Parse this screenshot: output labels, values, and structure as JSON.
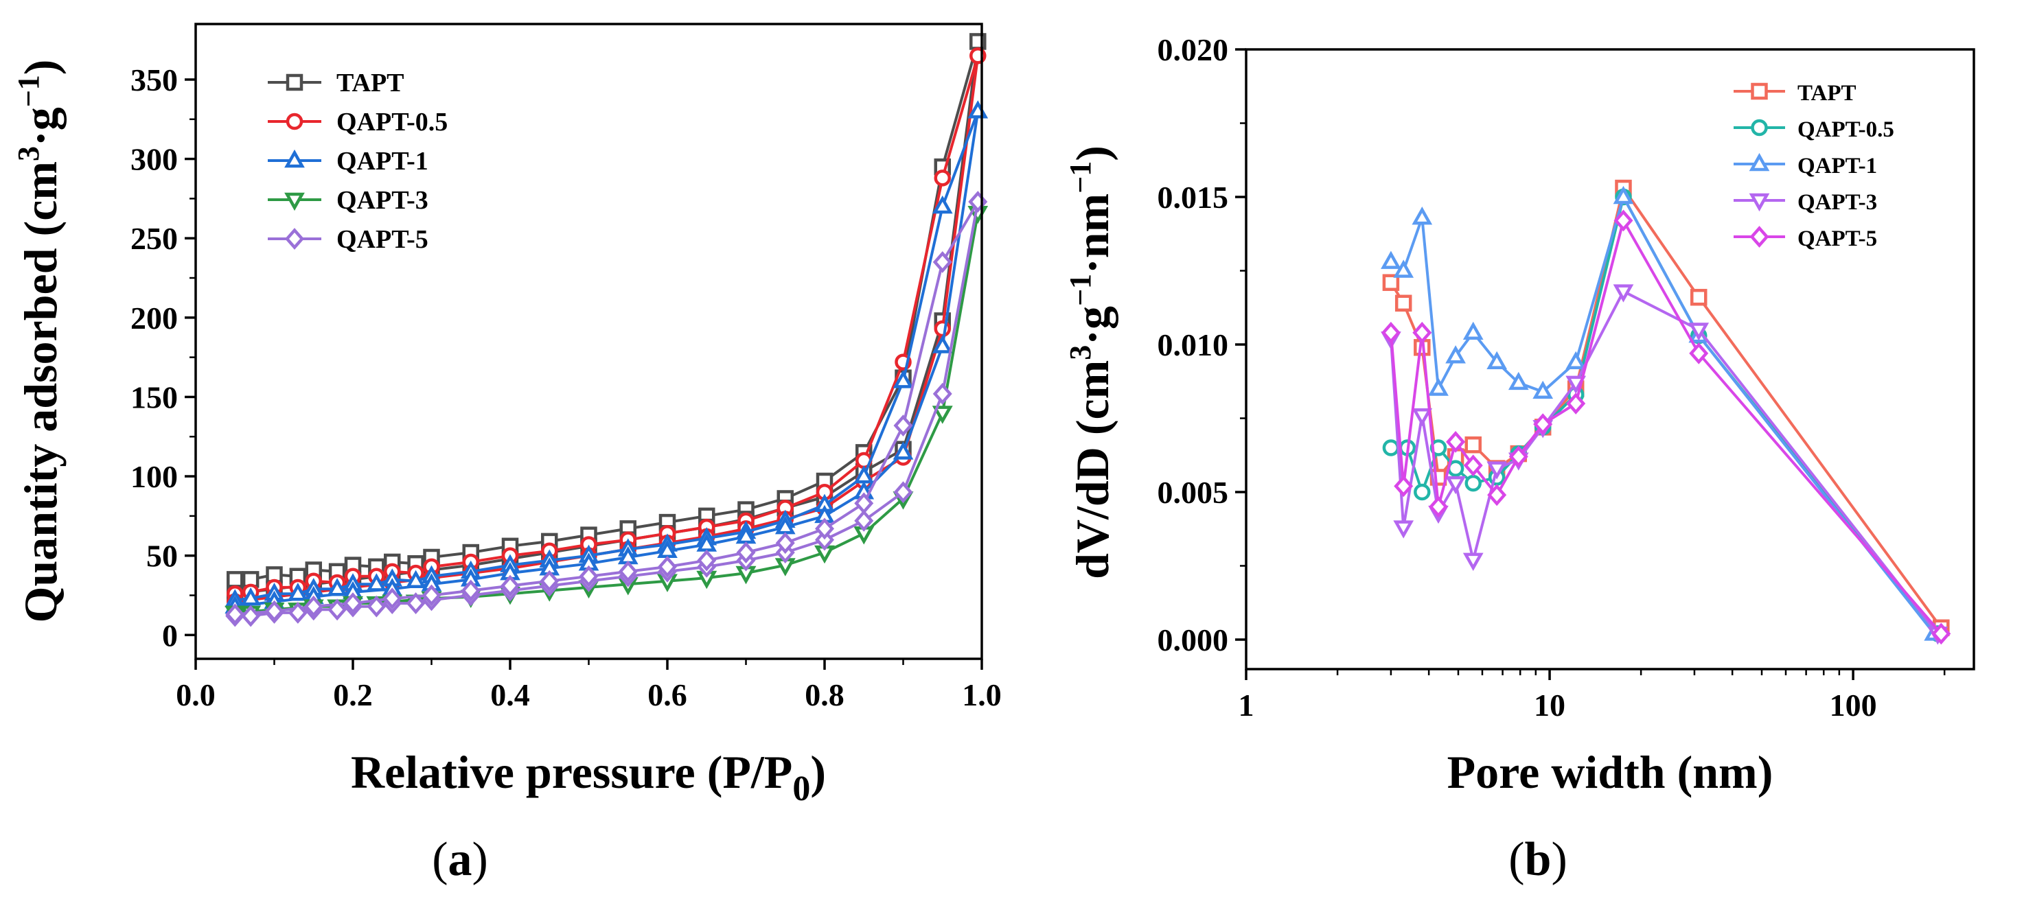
{
  "chart_data": [
    {
      "id": "a",
      "type": "line",
      "panel_label": "a",
      "title": "",
      "xlabel": "Relative pressure (P/P",
      "xlabel_sub": "0",
      "xlabel_end": ")",
      "ylabel": "Quantity adsorbed (cm",
      "ylabel_sup1": "3",
      "ylabel_mid": "·g",
      "ylabel_sup2": "−1",
      "ylabel_end": ")",
      "xscale": "linear",
      "xlim": [
        0.0,
        1.0
      ],
      "ylim": [
        -15,
        385
      ],
      "xticks": [
        0.0,
        0.2,
        0.4,
        0.6,
        0.8,
        1.0
      ],
      "xtick_labels": [
        "0.0",
        "0.2",
        "0.4",
        "0.6",
        "0.8",
        "1.0"
      ],
      "yticks": [
        0,
        50,
        100,
        150,
        200,
        250,
        300,
        350
      ],
      "ytick_labels": [
        "0",
        "50",
        "100",
        "150",
        "200",
        "250",
        "300",
        "350"
      ],
      "legend_position": "top-left",
      "series": [
        {
          "name": "TAPT",
          "color": "#4d4d4d",
          "marker": "square",
          "x": [
            0.05,
            0.07,
            0.1,
            0.13,
            0.15,
            0.18,
            0.2,
            0.23,
            0.25,
            0.28,
            0.3,
            0.35,
            0.4,
            0.45,
            0.5,
            0.55,
            0.6,
            0.65,
            0.7,
            0.75,
            0.8,
            0.85,
            0.9,
            0.95,
            0.995,
            0.95,
            0.9,
            0.85,
            0.8,
            0.75,
            0.7,
            0.65,
            0.6,
            0.55,
            0.5,
            0.45,
            0.4,
            0.35,
            0.3,
            0.25,
            0.2,
            0.15,
            0.1,
            0.05
          ],
          "y": [
            35,
            35,
            38,
            37,
            41,
            40,
            44,
            43,
            46,
            45,
            49,
            52,
            56,
            59,
            63,
            67,
            71,
            75,
            79,
            86,
            97,
            115,
            162,
            295,
            374,
            198,
            117,
            103,
            87,
            80,
            73,
            68,
            64,
            60,
            56,
            52,
            48,
            44,
            41,
            38,
            35,
            32,
            29,
            26
          ]
        },
        {
          "name": "QAPT-0.5",
          "color": "#e8262d",
          "marker": "circle",
          "x": [
            0.05,
            0.07,
            0.1,
            0.13,
            0.15,
            0.18,
            0.2,
            0.23,
            0.25,
            0.28,
            0.3,
            0.35,
            0.4,
            0.45,
            0.5,
            0.55,
            0.6,
            0.65,
            0.7,
            0.75,
            0.8,
            0.85,
            0.9,
            0.95,
            0.995,
            0.95,
            0.9,
            0.85,
            0.8,
            0.75,
            0.7,
            0.65,
            0.6,
            0.55,
            0.5,
            0.45,
            0.4,
            0.35,
            0.3,
            0.25,
            0.2,
            0.15,
            0.1,
            0.05
          ],
          "y": [
            26,
            27,
            30,
            30,
            34,
            33,
            37,
            37,
            40,
            39,
            43,
            46,
            50,
            53,
            57,
            60,
            64,
            68,
            72,
            80,
            90,
            110,
            172,
            288,
            365,
            193,
            112,
            97,
            80,
            73,
            67,
            62,
            58,
            54,
            50,
            46,
            42,
            39,
            36,
            33,
            30,
            27,
            24,
            21
          ]
        },
        {
          "name": "QAPT-1",
          "color": "#1f6fd6",
          "marker": "triangle-up",
          "x": [
            0.05,
            0.07,
            0.1,
            0.13,
            0.15,
            0.18,
            0.2,
            0.23,
            0.25,
            0.28,
            0.3,
            0.35,
            0.4,
            0.45,
            0.5,
            0.55,
            0.6,
            0.65,
            0.7,
            0.75,
            0.8,
            0.85,
            0.9,
            0.95,
            0.995,
            0.95,
            0.9,
            0.85,
            0.8,
            0.75,
            0.7,
            0.65,
            0.6,
            0.55,
            0.5,
            0.45,
            0.4,
            0.35,
            0.3,
            0.25,
            0.2,
            0.15,
            0.1,
            0.05
          ],
          "y": [
            22,
            23,
            26,
            26,
            29,
            29,
            32,
            32,
            35,
            34,
            37,
            40,
            44,
            47,
            50,
            54,
            57,
            61,
            65,
            72,
            82,
            100,
            160,
            270,
            330,
            182,
            115,
            90,
            75,
            68,
            62,
            57,
            53,
            49,
            45,
            42,
            39,
            35,
            32,
            29,
            27,
            24,
            21,
            18
          ]
        },
        {
          "name": "QAPT-3",
          "color": "#2e9a45",
          "marker": "triangle-down",
          "x": [
            0.05,
            0.07,
            0.1,
            0.13,
            0.15,
            0.18,
            0.2,
            0.23,
            0.25,
            0.28,
            0.3,
            0.35,
            0.4,
            0.45,
            0.5,
            0.55,
            0.6,
            0.65,
            0.7,
            0.75,
            0.8,
            0.85,
            0.9,
            0.95,
            0.995,
            0.95,
            0.9,
            0.85,
            0.8,
            0.75,
            0.7,
            0.65,
            0.6,
            0.55,
            0.5,
            0.45,
            0.4,
            0.35,
            0.3,
            0.25,
            0.2,
            0.15,
            0.1,
            0.05
          ],
          "y": [
            14,
            14,
            16,
            16,
            18,
            18,
            20,
            20,
            21,
            21,
            23,
            24,
            26,
            28,
            30,
            32,
            34,
            36,
            39,
            44,
            52,
            64,
            86,
            140,
            266,
            140,
            86,
            64,
            52,
            44,
            39,
            36,
            34,
            32,
            30,
            28,
            26,
            24,
            23,
            21,
            20,
            18,
            16,
            14
          ]
        },
        {
          "name": "QAPT-5",
          "color": "#9a70d8",
          "marker": "diamond",
          "x": [
            0.05,
            0.07,
            0.1,
            0.13,
            0.15,
            0.18,
            0.2,
            0.23,
            0.25,
            0.28,
            0.3,
            0.35,
            0.4,
            0.45,
            0.5,
            0.55,
            0.6,
            0.65,
            0.7,
            0.75,
            0.8,
            0.85,
            0.9,
            0.95,
            0.995,
            0.95,
            0.9,
            0.85,
            0.8,
            0.75,
            0.7,
            0.65,
            0.6,
            0.55,
            0.5,
            0.45,
            0.4,
            0.35,
            0.3,
            0.25,
            0.2,
            0.15,
            0.1,
            0.05
          ],
          "y": [
            12,
            12,
            14,
            14,
            16,
            16,
            18,
            18,
            20,
            20,
            22,
            25,
            28,
            31,
            34,
            37,
            40,
            43,
            47,
            52,
            60,
            72,
            90,
            152,
            273,
            235,
            132,
            83,
            67,
            58,
            52,
            47,
            43,
            40,
            37,
            34,
            31,
            28,
            25,
            23,
            20,
            18,
            15,
            13
          ]
        }
      ]
    },
    {
      "id": "b",
      "type": "line",
      "panel_label": "b",
      "title": "",
      "xlabel": "Pore width (nm)",
      "ylabel": "dV/dD (cm",
      "ylabel_sup1": "3",
      "ylabel_mid": "·g",
      "ylabel_sup2": "−1",
      "ylabel_mid2": "·nm",
      "ylabel_sup3": "−1",
      "ylabel_end": ")",
      "xscale": "log",
      "xlim": [
        1,
        250
      ],
      "ylim": [
        -0.001,
        0.02
      ],
      "xticks": [
        1,
        10,
        100
      ],
      "xtick_labels": [
        "1",
        "10",
        "100"
      ],
      "yticks": [
        0.0,
        0.005,
        0.01,
        0.015,
        0.02
      ],
      "ytick_labels": [
        "0.000",
        "0.005",
        "0.010",
        "0.015",
        "0.020"
      ],
      "legend_position": "top-right",
      "series": [
        {
          "name": "TAPT",
          "color": "#f26b5b",
          "marker": "square",
          "x": [
            3.0,
            3.3,
            3.8,
            4.3,
            4.9,
            5.6,
            6.7,
            7.9,
            9.5,
            12.2,
            17.5,
            31.0,
            195.0
          ],
          "y": [
            0.0121,
            0.0114,
            0.0099,
            0.0055,
            0.0062,
            0.0066,
            0.0058,
            0.0063,
            0.0072,
            0.0085,
            0.0153,
            0.0116,
            0.0004
          ]
        },
        {
          "name": "QAPT-0.5",
          "color": "#22b5a8",
          "marker": "circle",
          "x": [
            3.0,
            3.4,
            3.8,
            4.3,
            4.9,
            5.6,
            6.7,
            7.9,
            9.5,
            12.2,
            17.5,
            31.0,
            190.0
          ],
          "y": [
            0.0065,
            0.0065,
            0.005,
            0.0065,
            0.0058,
            0.0053,
            0.0055,
            0.0063,
            0.0072,
            0.0083,
            0.015,
            0.0103,
            0.0002
          ]
        },
        {
          "name": "QAPT-1",
          "color": "#5b9bf2",
          "marker": "triangle-up",
          "x": [
            3.0,
            3.3,
            3.8,
            4.3,
            4.9,
            5.6,
            6.7,
            7.9,
            9.5,
            12.2,
            17.5,
            31.0,
            185.0
          ],
          "y": [
            0.0128,
            0.0125,
            0.0143,
            0.0085,
            0.0096,
            0.0104,
            0.0094,
            0.0087,
            0.0084,
            0.0094,
            0.015,
            0.0103,
            0.0002
          ]
        },
        {
          "name": "QAPT-3",
          "color": "#b466f0",
          "marker": "triangle-down",
          "x": [
            3.0,
            3.3,
            3.8,
            4.3,
            4.9,
            5.6,
            6.7,
            7.9,
            9.5,
            12.2,
            17.5,
            31.0,
            190.0
          ],
          "y": [
            0.0102,
            0.0038,
            0.0076,
            0.0043,
            0.0053,
            0.0027,
            0.0058,
            0.0061,
            0.0072,
            0.0087,
            0.0118,
            0.0105,
            0.0002
          ]
        },
        {
          "name": "QAPT-5",
          "color": "#d946e8",
          "marker": "diamond",
          "x": [
            3.0,
            3.3,
            3.8,
            4.3,
            4.9,
            5.6,
            6.7,
            7.9,
            9.5,
            12.2,
            17.5,
            31.0,
            195.0
          ],
          "y": [
            0.0104,
            0.0052,
            0.0104,
            0.0045,
            0.0067,
            0.0059,
            0.0049,
            0.0062,
            0.0073,
            0.008,
            0.0142,
            0.0097,
            0.0002
          ]
        }
      ]
    }
  ]
}
